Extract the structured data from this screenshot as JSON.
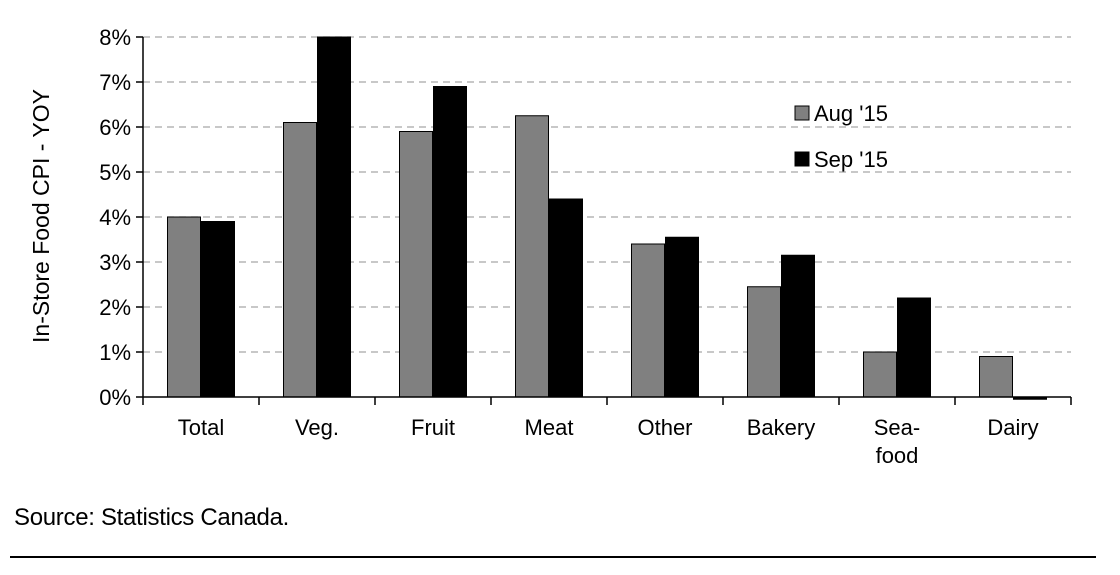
{
  "chart_data": {
    "type": "bar",
    "ylabel": "In-Store Food CPI - YOY",
    "xlabel": "",
    "ylim": [
      0,
      8
    ],
    "y_ticks": [
      "0%",
      "1%",
      "2%",
      "3%",
      "4%",
      "5%",
      "6%",
      "7%",
      "8%"
    ],
    "y_unit": "%",
    "grid": "horizontal dashed",
    "legend_position": "top-right",
    "categories": [
      "Total",
      "Veg.",
      "Fruit",
      "Meat",
      "Other",
      "Bakery",
      "Sea-\nfood",
      "Dairy"
    ],
    "series": [
      {
        "name": "Aug '15",
        "color": "#808080",
        "values": [
          4.0,
          6.1,
          5.9,
          6.25,
          3.4,
          2.45,
          1.0,
          0.9
        ]
      },
      {
        "name": "Sep '15",
        "color": "#000000",
        "values": [
          3.9,
          8.0,
          6.9,
          4.4,
          3.55,
          3.15,
          2.2,
          -0.05
        ]
      }
    ]
  },
  "footer": {
    "source": "Source: Statistics Canada."
  }
}
